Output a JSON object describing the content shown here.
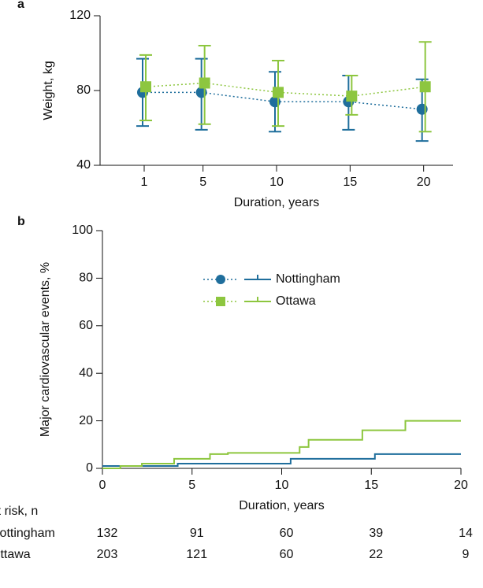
{
  "chart_data": [
    {
      "type": "errorline",
      "panel_label": "a",
      "ylabel": "Weight, kg",
      "xlabel": "Duration, years",
      "x": [
        1,
        5,
        10,
        15,
        20
      ],
      "xlim": [
        -2,
        22
      ],
      "xticks": [
        1,
        5,
        10,
        15,
        20
      ],
      "ylim": [
        40,
        120
      ],
      "yticks": [
        40,
        80,
        120
      ],
      "series": [
        {
          "name": "Nottingham",
          "color": "#1f6e9c",
          "marker": "circle",
          "values": [
            79,
            79,
            74,
            74,
            70
          ],
          "low": [
            61,
            59,
            58,
            59,
            53
          ],
          "high": [
            97,
            97,
            90,
            88,
            86
          ]
        },
        {
          "name": "Ottawa",
          "color": "#8dc63f",
          "marker": "square",
          "values": [
            82,
            84,
            79,
            77,
            82
          ],
          "low": [
            64,
            62,
            61,
            67,
            58
          ],
          "high": [
            99,
            104,
            96,
            88,
            106
          ]
        }
      ]
    },
    {
      "type": "step",
      "panel_label": "b",
      "ylabel": "Major cardiovascular events, %",
      "xlabel": "Duration, years",
      "xlim": [
        0,
        20
      ],
      "xticks": [
        0,
        5,
        10,
        15,
        20
      ],
      "ylim": [
        0,
        100
      ],
      "yticks": [
        0,
        20,
        40,
        60,
        80,
        100
      ],
      "series": [
        {
          "name": "Nottingham",
          "color": "#1f6e9c",
          "marker": "circle",
          "x": [
            0,
            4.2,
            10.5,
            15.2,
            20
          ],
          "values": [
            1,
            2,
            4,
            6,
            6
          ]
        },
        {
          "name": "Ottawa",
          "color": "#8dc63f",
          "marker": "square",
          "x": [
            0,
            1,
            2.2,
            4,
            6,
            7,
            11,
            11.5,
            14.5,
            16.9,
            20
          ],
          "values": [
            0,
            1,
            2,
            4,
            6,
            6.5,
            9,
            12,
            16,
            20,
            20
          ]
        }
      ],
      "at_risk": {
        "title": "At risk, n",
        "rows": [
          {
            "name": "Nottingham",
            "values": [
              132,
              91,
              60,
              39,
              14
            ]
          },
          {
            "name": "Ottawa",
            "values": [
              203,
              121,
              60,
              22,
              9
            ]
          }
        ]
      }
    }
  ]
}
